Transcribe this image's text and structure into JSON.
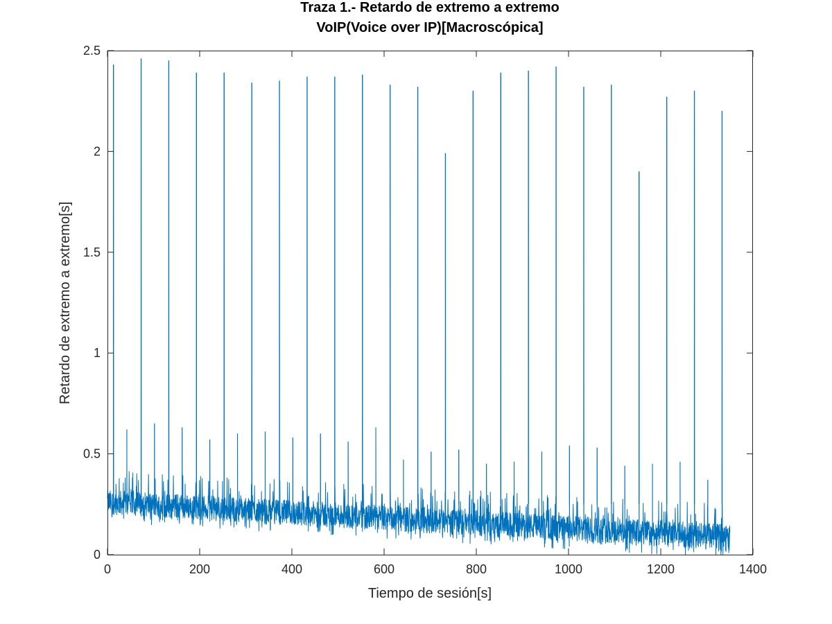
{
  "chart_data": {
    "type": "line",
    "title": "Traza 1.- Retardo de extremo a extremo",
    "subtitle": "VoIP(Voice over IP)[Macroscópica]",
    "xlabel": "Tiempo de sesión[s]",
    "ylabel": "Retardo de extremo a extremo[s]",
    "xlim": [
      0,
      1400
    ],
    "ylim": [
      0,
      2.5
    ],
    "x_ticks": [
      0,
      200,
      400,
      600,
      800,
      1000,
      1200,
      1400
    ],
    "x_tick_labels": [
      "0",
      "200",
      "400",
      "600",
      "800",
      "1000",
      "1200",
      "1400"
    ],
    "y_ticks": [
      0,
      0.5,
      1,
      1.5,
      2,
      2.5
    ],
    "y_tick_labels": [
      "0",
      "0.5",
      "1",
      "1.5",
      "2",
      "2.5"
    ],
    "grid": false,
    "line_color": "#0072bd",
    "series": [
      {
        "x_range": [
          0,
          1350
        ],
        "baseline_min": {
          "x": [
            0,
            1350
          ],
          "y": [
            0.2,
            0.02
          ]
        },
        "baseline_max": {
          "x": [
            0,
            1350
          ],
          "y": [
            0.32,
            0.15
          ]
        },
        "peaks": [
          {
            "x": 13,
            "y": 2.43
          },
          {
            "x": 73,
            "y": 2.46
          },
          {
            "x": 133,
            "y": 2.45
          },
          {
            "x": 193,
            "y": 2.39
          },
          {
            "x": 253,
            "y": 2.39
          },
          {
            "x": 313,
            "y": 2.34
          },
          {
            "x": 373,
            "y": 2.35
          },
          {
            "x": 433,
            "y": 2.37
          },
          {
            "x": 493,
            "y": 2.37
          },
          {
            "x": 553,
            "y": 2.38
          },
          {
            "x": 613,
            "y": 2.33
          },
          {
            "x": 673,
            "y": 2.32
          },
          {
            "x": 733,
            "y": 1.99
          },
          {
            "x": 793,
            "y": 2.3
          },
          {
            "x": 853,
            "y": 2.39
          },
          {
            "x": 913,
            "y": 2.4
          },
          {
            "x": 973,
            "y": 2.42
          },
          {
            "x": 1033,
            "y": 2.32
          },
          {
            "x": 1093,
            "y": 2.33
          },
          {
            "x": 1153,
            "y": 1.9
          },
          {
            "x": 1213,
            "y": 2.27
          },
          {
            "x": 1273,
            "y": 2.3
          },
          {
            "x": 1333,
            "y": 2.2
          }
        ],
        "secondary_peaks": [
          {
            "x": 42,
            "y": 0.62
          },
          {
            "x": 102,
            "y": 0.65
          },
          {
            "x": 162,
            "y": 0.63
          },
          {
            "x": 222,
            "y": 0.57
          },
          {
            "x": 282,
            "y": 0.6
          },
          {
            "x": 342,
            "y": 0.61
          },
          {
            "x": 402,
            "y": 0.58
          },
          {
            "x": 462,
            "y": 0.6
          },
          {
            "x": 522,
            "y": 0.56
          },
          {
            "x": 582,
            "y": 0.63
          },
          {
            "x": 642,
            "y": 0.47
          },
          {
            "x": 702,
            "y": 0.51
          },
          {
            "x": 762,
            "y": 0.52
          },
          {
            "x": 822,
            "y": 0.45
          },
          {
            "x": 882,
            "y": 0.46
          },
          {
            "x": 942,
            "y": 0.51
          },
          {
            "x": 1002,
            "y": 0.54
          },
          {
            "x": 1062,
            "y": 0.53
          },
          {
            "x": 1122,
            "y": 0.44
          },
          {
            "x": 1182,
            "y": 0.45
          },
          {
            "x": 1242,
            "y": 0.46
          },
          {
            "x": 1302,
            "y": 0.37
          }
        ]
      }
    ]
  }
}
